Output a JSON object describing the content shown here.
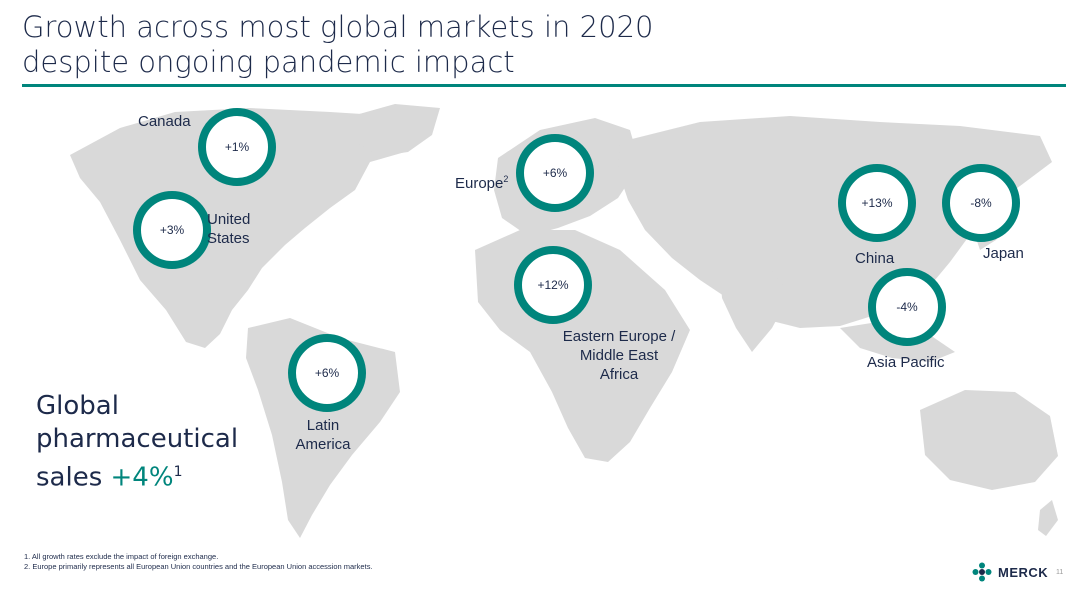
{
  "title": {
    "line1": "Growth across most global markets in 2020",
    "line2": "despite ongoing pandemic impact"
  },
  "markets": [
    {
      "name": "Canada",
      "growth": "+1%"
    },
    {
      "name": "United States",
      "growth": "+3%"
    },
    {
      "name": "Europe",
      "footnote_ref": "2",
      "growth": "+6%"
    },
    {
      "name": "Eastern Europe / Middle East Africa",
      "growth": "+12%"
    },
    {
      "name": "Latin America",
      "growth": "+6%"
    },
    {
      "name": "China",
      "growth": "+13%"
    },
    {
      "name": "Japan",
      "growth": "-8%"
    },
    {
      "name": "Asia Pacific",
      "growth": "-4%"
    }
  ],
  "labels": {
    "united_states_line1": "United",
    "united_states_line2": "States",
    "eeme_line1": "Eastern Europe /",
    "eeme_line2": "Middle East",
    "eeme_line3": "Africa",
    "latin_line1": "Latin",
    "latin_line2": "America"
  },
  "global": {
    "line1": "Global",
    "line2": "pharmaceutical",
    "line3_prefix": "sales",
    "growth": "+4%",
    "footnote_ref": "1"
  },
  "footnotes": [
    "1. All growth rates exclude the impact of foreign exchange.",
    "2. Europe primarily represents all European Union countries and the European Union accession markets."
  ],
  "logo": {
    "text": "MERCK",
    "icon": "merck-logo-icon"
  },
  "page_number": "11",
  "colors": {
    "accent": "#00857c",
    "text": "#1d2a4a",
    "map": "#d9d9d9"
  }
}
